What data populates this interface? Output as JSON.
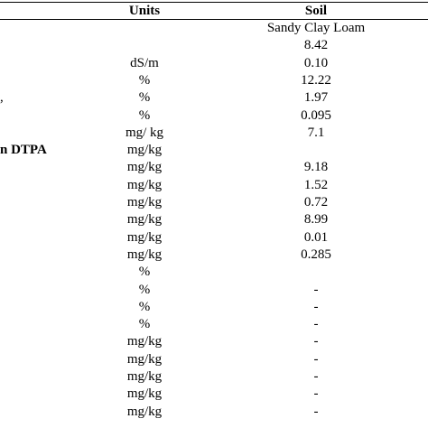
{
  "table": {
    "headers": {
      "units": "Units",
      "soil": "Soil"
    },
    "rows": [
      {
        "param": "",
        "units": "",
        "soil": "Sandy Clay Loam",
        "bold": false
      },
      {
        "param": "",
        "units": "",
        "soil": "8.42",
        "bold": false
      },
      {
        "param": "",
        "units": "dS/m",
        "soil": "0.10",
        "bold": false
      },
      {
        "param": "",
        "units": "%",
        "soil": "12.22",
        "bold": false
      },
      {
        "param": ",",
        "units": "%",
        "soil": "1.97",
        "bold": false
      },
      {
        "param": "",
        "units": "%",
        "soil": "0.095",
        "bold": false
      },
      {
        "param": "",
        "units": "mg/ kg",
        "soil": "7.1",
        "bold": false
      },
      {
        "param": "n DTPA",
        "units": "mg/kg",
        "soil": "",
        "bold": true
      },
      {
        "param": "",
        "units": "mg/kg",
        "soil": "9.18",
        "bold": false
      },
      {
        "param": "",
        "units": "mg/kg",
        "soil": "1.52",
        "bold": false
      },
      {
        "param": "",
        "units": "mg/kg",
        "soil": "0.72",
        "bold": false
      },
      {
        "param": "",
        "units": "mg/kg",
        "soil": "8.99",
        "bold": false
      },
      {
        "param": "",
        "units": "mg/kg",
        "soil": "0.01",
        "bold": false
      },
      {
        "param": "",
        "units": "mg/kg",
        "soil": "0.285",
        "bold": false
      },
      {
        "param": "",
        "units": "%",
        "soil": "",
        "bold": false
      },
      {
        "param": "",
        "units": "%",
        "soil": "-",
        "bold": false
      },
      {
        "param": "",
        "units": "%",
        "soil": "-",
        "bold": false
      },
      {
        "param": "",
        "units": "%",
        "soil": "-",
        "bold": false
      },
      {
        "param": "",
        "units": "mg/kg",
        "soil": "-",
        "bold": false
      },
      {
        "param": "",
        "units": "mg/kg",
        "soil": "-",
        "bold": false
      },
      {
        "param": "",
        "units": "mg/kg",
        "soil": "-",
        "bold": false
      },
      {
        "param": "",
        "units": "mg/kg",
        "soil": "-",
        "bold": false
      },
      {
        "param": "",
        "units": "mg/kg",
        "soil": "-",
        "bold": false
      }
    ]
  }
}
